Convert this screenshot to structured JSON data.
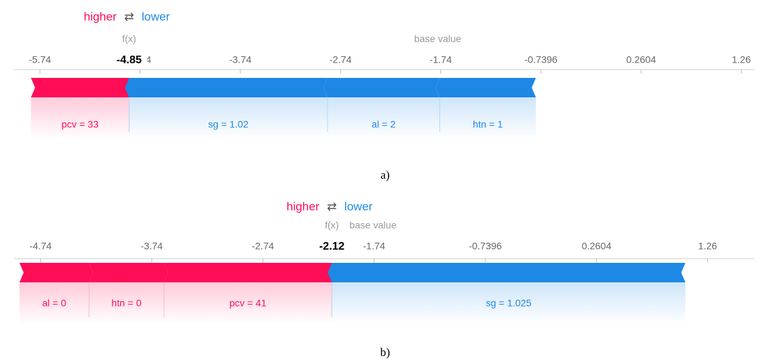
{
  "chart_data": [
    {
      "type": "force",
      "higher": "higher",
      "lower": "lower",
      "fx_label": "f(x)",
      "base_label": "base value",
      "fx": -4.85,
      "base_value": -1.77,
      "xlim": [
        -6.0,
        1.39
      ],
      "xticks": [
        -5.74,
        -4.74,
        -3.74,
        -2.74,
        -1.74,
        -0.7396,
        0.2604,
        1.26
      ],
      "higher_color": "#ff0d57",
      "lower_color": "#1e88e5",
      "features": [
        {
          "label": "pcv = 33",
          "effect": 0.98
        },
        {
          "label": "sg = 1.02",
          "effect": -1.98
        },
        {
          "label": "al = 2",
          "effect": -1.12
        },
        {
          "label": "htn = 1",
          "effect": -0.96
        }
      ],
      "caption": "a)"
    },
    {
      "type": "force",
      "higher": "higher",
      "lower": "lower",
      "fx_label": "f(x)",
      "base_label": "base value",
      "fx": -2.12,
      "base_value": -1.75,
      "xlim": [
        -4.98,
        1.68
      ],
      "xticks": [
        -4.74,
        -3.74,
        -2.74,
        -1.74,
        -0.7396,
        0.2604,
        1.26
      ],
      "higher_color": "#ff0d57",
      "lower_color": "#1e88e5",
      "features": [
        {
          "label": "al = 0",
          "effect": 0.625
        },
        {
          "label": "htn = 0",
          "effect": 0.675
        },
        {
          "label": "pcv = 41",
          "effect": 1.51
        },
        {
          "label": "sg = 1.025",
          "effect": -3.18
        }
      ],
      "caption": "b)"
    }
  ]
}
